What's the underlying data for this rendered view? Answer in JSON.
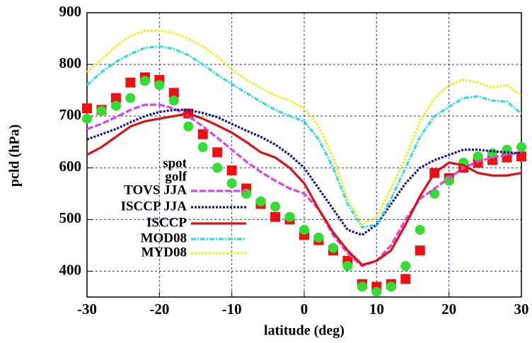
{
  "chart_data": {
    "type": "line",
    "xlabel": "latitude (deg)",
    "ylabel": "pcld (hPa)",
    "x": [
      -30,
      -28,
      -26,
      -24,
      -22,
      -20,
      -18,
      -16,
      -14,
      -12,
      -10,
      -8,
      -6,
      -4,
      -2,
      0,
      2,
      4,
      6,
      8,
      10,
      12,
      14,
      16,
      18,
      20,
      22,
      24,
      26,
      28,
      30
    ],
    "xlim": [
      -30,
      30
    ],
    "xticks": [
      -30,
      -20,
      -10,
      0,
      10,
      20,
      30
    ],
    "ylim": [
      350,
      900
    ],
    "yticks": [
      400,
      500,
      600,
      700,
      800,
      900
    ],
    "grid": true,
    "legend": "left",
    "series": [
      {
        "name": "spot",
        "color": "#ee1111",
        "marker": "square",
        "values": [
          715,
          712,
          735,
          765,
          775,
          770,
          745,
          705,
          665,
          630,
          595,
          560,
          530,
          505,
          500,
          470,
          460,
          440,
          420,
          375,
          370,
          375,
          385,
          440,
          590,
          580,
          600,
          610,
          615,
          620,
          622
        ]
      },
      {
        "name": "golf",
        "color": "#33dd33",
        "marker": "circle",
        "values": [
          695,
          710,
          720,
          735,
          768,
          760,
          730,
          680,
          640,
          600,
          570,
          550,
          535,
          525,
          505,
          480,
          465,
          445,
          410,
          370,
          360,
          370,
          410,
          480,
          550,
          575,
          610,
          622,
          628,
          635,
          640
        ]
      },
      {
        "name": "TOVS JJA",
        "color": "#dd44dd",
        "linestyle": "dashed",
        "values": [
          675,
          685,
          698,
          712,
          722,
          722,
          715,
          700,
          680,
          658,
          635,
          612,
          592,
          575,
          560,
          550,
          520,
          470,
          435,
          410,
          420,
          450,
          500,
          540,
          560,
          580,
          600,
          612,
          620,
          625,
          630
        ]
      },
      {
        "name": "ISCCP JJA",
        "color": "#11119a",
        "linestyle": "dotted",
        "values": [
          655,
          665,
          675,
          688,
          700,
          708,
          712,
          712,
          706,
          698,
          685,
          672,
          660,
          645,
          625,
          600,
          560,
          520,
          480,
          470,
          490,
          530,
          570,
          600,
          615,
          625,
          635,
          635,
          632,
          630,
          628
        ]
      },
      {
        "name": "ISCCP",
        "color": "#dd1111",
        "linestyle": "solid",
        "values": [
          625,
          640,
          660,
          680,
          690,
          695,
          700,
          705,
          695,
          682,
          668,
          650,
          630,
          620,
          600,
          570,
          520,
          475,
          440,
          412,
          420,
          440,
          490,
          545,
          590,
          610,
          605,
          590,
          585,
          585,
          590
        ]
      },
      {
        "name": "MOD08",
        "color": "#33dddd",
        "linestyle": "dashdot",
        "values": [
          760,
          785,
          805,
          820,
          832,
          835,
          830,
          818,
          800,
          780,
          762,
          745,
          728,
          712,
          700,
          690,
          655,
          600,
          530,
          485,
          490,
          540,
          600,
          660,
          700,
          718,
          735,
          738,
          730,
          728,
          705
        ]
      },
      {
        "name": "MYD08",
        "color": "#eeee22",
        "linestyle": "dotted",
        "values": [
          785,
          810,
          835,
          855,
          865,
          865,
          860,
          850,
          835,
          815,
          790,
          770,
          755,
          740,
          730,
          715,
          680,
          620,
          540,
          490,
          505,
          560,
          620,
          690,
          735,
          760,
          770,
          765,
          755,
          760,
          740
        ]
      }
    ]
  }
}
